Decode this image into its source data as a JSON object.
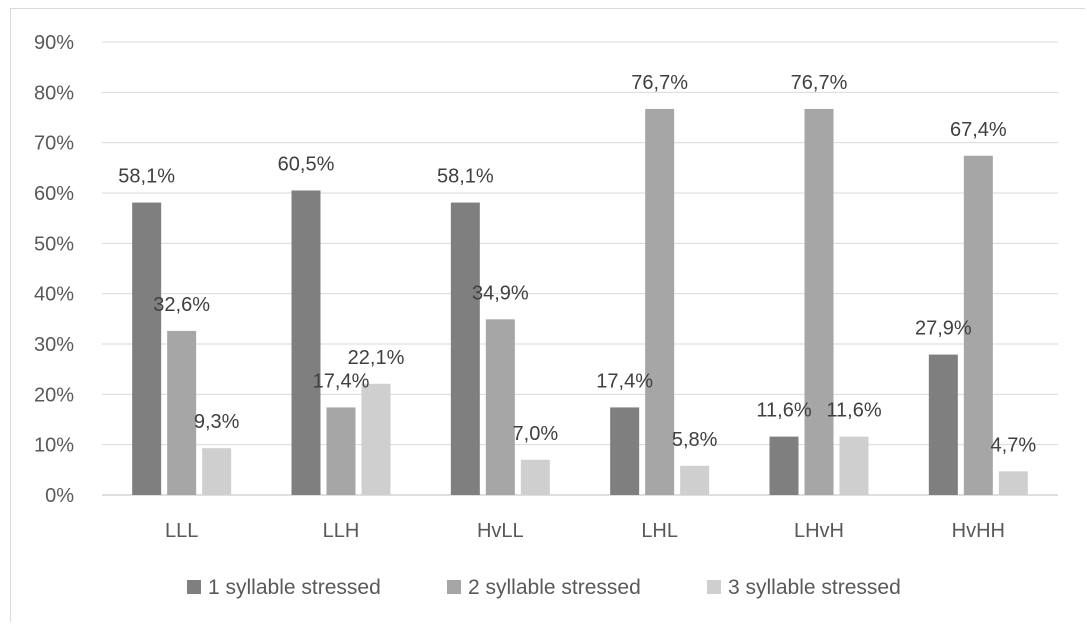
{
  "chart_data": {
    "type": "bar",
    "categories": [
      "LLL",
      "LLH",
      "HvLL",
      "LHL",
      "LHvH",
      "HvHH"
    ],
    "series": [
      {
        "name": "1 syllable stressed",
        "color": "#7f7f7f",
        "values": [
          58.1,
          60.5,
          58.1,
          17.4,
          11.6,
          27.9
        ],
        "labels": [
          "58,1%",
          "60,5%",
          "58,1%",
          "17,4%",
          "11,6%",
          "27,9%"
        ]
      },
      {
        "name": "2 syllable stressed",
        "color": "#a6a6a6",
        "values": [
          32.6,
          17.4,
          34.9,
          76.7,
          76.7,
          67.4
        ],
        "labels": [
          "32,6%",
          "17,4%",
          "34,9%",
          "76,7%",
          "76,7%",
          "67,4%"
        ]
      },
      {
        "name": "3 syllable stressed",
        "color": "#cfcfcf",
        "values": [
          9.3,
          22.1,
          7.0,
          5.8,
          11.6,
          4.7
        ],
        "labels": [
          "9,3%",
          "22,1%",
          "7,0%",
          "5,8%",
          "11,6%",
          "4,7%"
        ]
      }
    ],
    "ylim": [
      0,
      90
    ],
    "yticks": [
      "0%",
      "10%",
      "20%",
      "30%",
      "40%",
      "50%",
      "60%",
      "70%",
      "80%",
      "90%"
    ],
    "grid": true,
    "legend": "bottom",
    "title": "",
    "xlabel": "",
    "ylabel": ""
  }
}
